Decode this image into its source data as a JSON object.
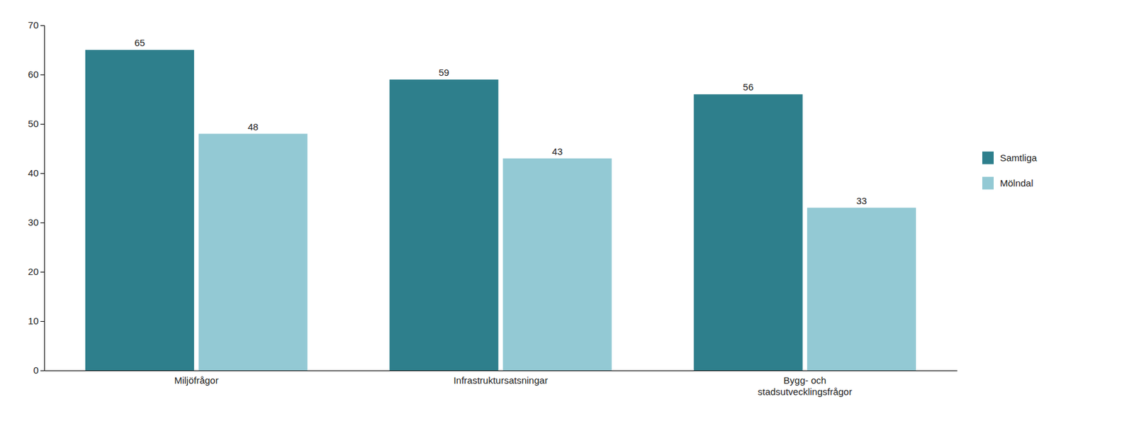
{
  "chart_data": {
    "type": "bar",
    "categories": [
      "Miljöfrågor",
      "Infrastruktursatsningar",
      "Bygg- och\nstadsutvecklingsfrågor"
    ],
    "series": [
      {
        "name": "Samtliga",
        "color": "#2e7f8c",
        "values": [
          65,
          59,
          56
        ]
      },
      {
        "name": "Mölndal",
        "color": "#93c9d4",
        "values": [
          48,
          43,
          33
        ]
      }
    ],
    "ylim": [
      0,
      70
    ],
    "yticks": [
      0,
      10,
      20,
      30,
      40,
      50,
      60,
      70
    ],
    "grid": false,
    "legend": "right",
    "data_labels": true
  }
}
